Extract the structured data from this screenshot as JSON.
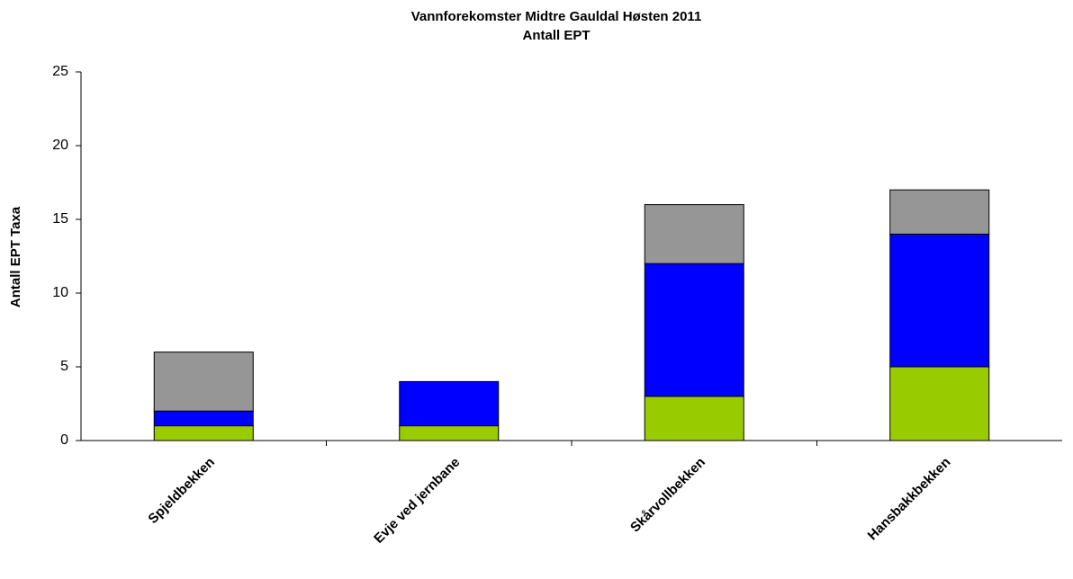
{
  "chart_data": {
    "type": "stacked_bar",
    "title": "Vannforekomster Midtre Gauldal Høsten 2011",
    "subtitle": "Antall EPT",
    "y_label": "Antall EPT Taxa",
    "categories": [
      "Spjeldbekken",
      "Evje ved jernbane",
      "Skårvollbekken",
      "Hansbakkbekken"
    ],
    "series": [
      {
        "color": "#99cc00",
        "values": [
          1,
          1,
          3,
          5
        ]
      },
      {
        "color": "#0000ff",
        "values": [
          1,
          3,
          9,
          9
        ]
      },
      {
        "color": "#969696",
        "values": [
          4,
          0,
          4,
          3
        ]
      }
    ],
    "ylim": [
      0,
      25
    ],
    "yticks": [
      0,
      5,
      10,
      15,
      20,
      25
    ],
    "grid": false
  }
}
